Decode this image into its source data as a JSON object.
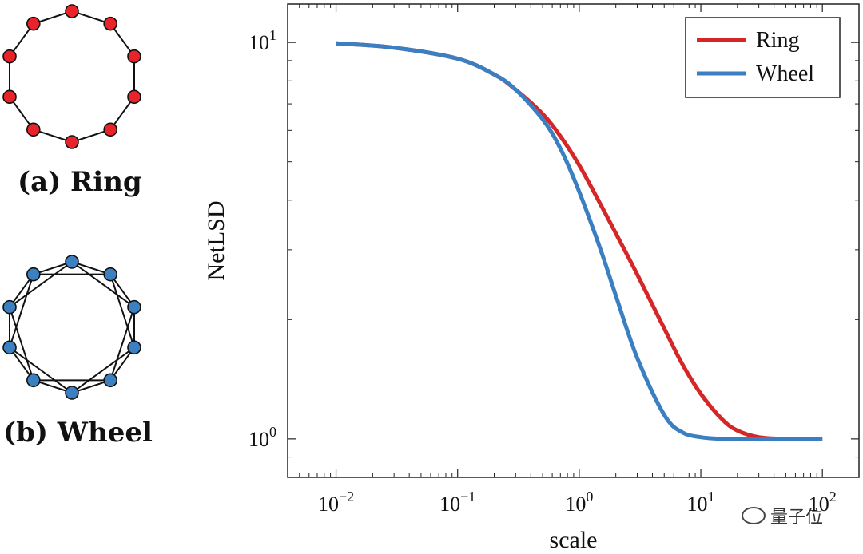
{
  "graphs": {
    "ring": {
      "caption": "(a) Ring",
      "color": "#e8242a",
      "node_count": 10,
      "skip": 1
    },
    "wheel": {
      "caption": "(b) Wheel",
      "color": "#3d80c1",
      "node_count": 10,
      "skip": 2
    }
  },
  "chart_data": {
    "type": "line",
    "xscale": "log",
    "yscale": "log",
    "xlabel": "scale",
    "ylabel": "NetLSD",
    "xlim": [
      0.004,
      200
    ],
    "ylim": [
      0.8,
      12.5
    ],
    "xticks": [
      {
        "value": 0.01,
        "base": "10",
        "exp": "−2"
      },
      {
        "value": 0.1,
        "base": "10",
        "exp": "−1"
      },
      {
        "value": 1,
        "base": "10",
        "exp": "0"
      },
      {
        "value": 10,
        "base": "10",
        "exp": "1"
      },
      {
        "value": 100,
        "base": "10",
        "exp": "2"
      }
    ],
    "yticks": [
      {
        "value": 1,
        "base": "10",
        "exp": "0"
      },
      {
        "value": 10,
        "base": "10",
        "exp": "1"
      }
    ],
    "legend_position": "top-right",
    "series": [
      {
        "name": "Ring",
        "color": "#d62728",
        "x": [
          0.01,
          0.03,
          0.1,
          0.2,
          0.3,
          0.5,
          0.7,
          1,
          1.5,
          2,
          3,
          5,
          7,
          10,
          15,
          20,
          30,
          50,
          100
        ],
        "y": [
          9.95,
          9.7,
          9.1,
          8.3,
          7.6,
          6.6,
          5.8,
          4.9,
          3.9,
          3.3,
          2.6,
          1.9,
          1.55,
          1.3,
          1.12,
          1.05,
          1.01,
          1.0,
          1.0
        ]
      },
      {
        "name": "Wheel",
        "color": "#3a7fc1",
        "x": [
          0.01,
          0.03,
          0.1,
          0.2,
          0.3,
          0.5,
          0.7,
          1,
          1.5,
          2,
          3,
          5,
          7,
          10,
          15,
          20,
          30,
          50,
          100
        ],
        "y": [
          9.95,
          9.7,
          9.1,
          8.3,
          7.6,
          6.4,
          5.4,
          4.2,
          3.0,
          2.3,
          1.6,
          1.15,
          1.04,
          1.01,
          1.0,
          1.0,
          1.0,
          1.0,
          1.0
        ]
      }
    ]
  },
  "watermark": {
    "text": "量子位",
    "icon": "wechat-icon"
  }
}
